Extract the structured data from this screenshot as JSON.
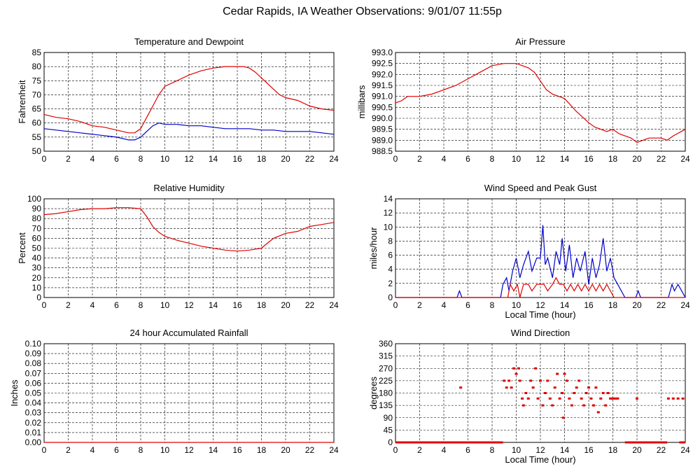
{
  "page_title": "Cedar Rapids, IA Weather Observations: 9/01/07 11:55p",
  "colors": {
    "red": "#e00000",
    "blue": "#0000cc",
    "grid": "#000000"
  },
  "chart_data": [
    {
      "id": "temp",
      "type": "line",
      "title": "Temperature and Dewpoint",
      "xlabel": "",
      "ylabel": "Fahrenheit",
      "xlim": [
        0,
        24
      ],
      "ylim": [
        50,
        85
      ],
      "xticks": [
        "0",
        "2",
        "4",
        "6",
        "8",
        "10",
        "12",
        "14",
        "16",
        "18",
        "20",
        "22",
        "24"
      ],
      "yticks": [
        "50",
        "55",
        "60",
        "65",
        "70",
        "75",
        "80",
        "85"
      ],
      "series": [
        {
          "color": "#e00000",
          "x": [
            0,
            1,
            2,
            3,
            4,
            5,
            6,
            7,
            7.5,
            8,
            8.5,
            9,
            9.5,
            10,
            11,
            12,
            13,
            14,
            15,
            16,
            16.5,
            17,
            17.5,
            18,
            18.5,
            19,
            19.5,
            20,
            21,
            22,
            23,
            24
          ],
          "y": [
            63,
            62,
            61.5,
            60.5,
            59,
            58.5,
            57.5,
            56.5,
            56.5,
            58,
            62,
            66,
            70,
            73,
            75,
            77,
            78.5,
            79.5,
            80,
            80,
            80,
            79.5,
            78,
            76,
            74,
            72,
            70,
            69,
            68,
            66,
            65,
            64.5
          ]
        },
        {
          "color": "#0000cc",
          "x": [
            0,
            1,
            2,
            3,
            4,
            5,
            6,
            7,
            7.5,
            8,
            8.5,
            9,
            9.5,
            10,
            11,
            12,
            13,
            14,
            15,
            16,
            17,
            18,
            19,
            20,
            21,
            22,
            23,
            24
          ],
          "y": [
            58,
            57.5,
            57,
            56.5,
            56,
            55.5,
            55,
            54,
            54,
            55,
            57,
            59,
            60,
            59.5,
            59.5,
            59,
            59,
            58.5,
            58,
            58,
            58,
            57.5,
            57.5,
            57,
            57,
            57,
            56.5,
            56
          ]
        }
      ]
    },
    {
      "id": "pressure",
      "type": "line",
      "title": "Air Pressure",
      "xlabel": "",
      "ylabel": "millibars",
      "xlim": [
        0,
        24
      ],
      "ylim": [
        988.5,
        993.0
      ],
      "xticks": [
        "0",
        "2",
        "4",
        "6",
        "8",
        "10",
        "12",
        "14",
        "16",
        "18",
        "20",
        "22",
        "24"
      ],
      "yticks": [
        "988.5",
        "989.0",
        "989.5",
        "990.0",
        "990.5",
        "991.0",
        "991.5",
        "992.0",
        "992.5",
        "993.0"
      ],
      "series": [
        {
          "color": "#e00000",
          "x": [
            0,
            0.5,
            1,
            2,
            3,
            4,
            5,
            6,
            7,
            8,
            9,
            10,
            11,
            11.5,
            12,
            12.5,
            13,
            14,
            15,
            16,
            16.5,
            17,
            17.5,
            18,
            18.5,
            19,
            19.5,
            20,
            21,
            22,
            22.5,
            23,
            24
          ],
          "y": [
            990.7,
            990.8,
            991.0,
            991.0,
            991.1,
            991.3,
            991.5,
            991.8,
            992.1,
            992.4,
            992.5,
            992.5,
            992.3,
            992.1,
            991.7,
            991.3,
            991.1,
            990.9,
            990.3,
            989.8,
            989.6,
            989.5,
            989.4,
            989.5,
            989.3,
            989.2,
            989.1,
            988.9,
            989.1,
            989.1,
            989.0,
            989.2,
            989.5
          ]
        }
      ]
    },
    {
      "id": "humidity",
      "type": "line",
      "title": "Relative Humidity",
      "xlabel": "",
      "ylabel": "Percent",
      "xlim": [
        0,
        24
      ],
      "ylim": [
        0,
        100
      ],
      "xticks": [
        "0",
        "2",
        "4",
        "6",
        "8",
        "10",
        "12",
        "14",
        "16",
        "18",
        "20",
        "22",
        "24"
      ],
      "yticks": [
        "0",
        "10",
        "20",
        "30",
        "40",
        "50",
        "60",
        "70",
        "80",
        "90",
        "100"
      ],
      "series": [
        {
          "color": "#e00000",
          "x": [
            0,
            1,
            2,
            3,
            4,
            5,
            6,
            7,
            8,
            8.5,
            9,
            9.5,
            10,
            11,
            12,
            13,
            14,
            15,
            16,
            17,
            18,
            18.5,
            19,
            20,
            21,
            22,
            23,
            24
          ],
          "y": [
            84,
            85,
            87,
            89,
            90,
            90,
            91,
            91,
            90,
            82,
            72,
            66,
            62,
            58,
            55,
            52,
            50,
            48,
            47,
            48,
            50,
            55,
            60,
            65,
            67,
            72,
            74,
            76
          ]
        }
      ]
    },
    {
      "id": "wind",
      "type": "line",
      "title": "Wind Speed and Peak Gust",
      "xlabel": "Local Time (hour)",
      "ylabel": "miles/hour",
      "xlim": [
        0,
        24
      ],
      "ylim": [
        0,
        15
      ],
      "xticks": [
        "0",
        "2",
        "4",
        "6",
        "8",
        "10",
        "12",
        "14",
        "16",
        "18",
        "20",
        "22",
        "24"
      ],
      "yticks": [
        "0",
        "2",
        "4",
        "6",
        "8",
        "10",
        "12",
        "14"
      ],
      "series": [
        {
          "color": "#0000cc",
          "x": [
            0,
            5.1,
            5.3,
            5.5,
            8.7,
            8.9,
            9.2,
            9.4,
            9.7,
            10.0,
            10.3,
            10.6,
            11.0,
            11.3,
            11.7,
            12.0,
            12.2,
            12.4,
            12.6,
            13.0,
            13.3,
            13.6,
            13.8,
            14.1,
            14.4,
            14.7,
            15.0,
            15.3,
            15.7,
            16.0,
            16.3,
            16.6,
            16.9,
            17.2,
            17.5,
            17.8,
            18.1,
            18.4,
            18.7,
            19.0,
            19.9,
            20.1,
            20.3,
            22.6,
            22.9,
            23.1,
            23.4,
            23.7,
            24
          ],
          "y": [
            0,
            0,
            1,
            0,
            0,
            2,
            3,
            1,
            4,
            6,
            3,
            5,
            7,
            4,
            6,
            6,
            11,
            5,
            6,
            3,
            7,
            5,
            9,
            4,
            8,
            3,
            6,
            4,
            7,
            2,
            6,
            3,
            5,
            9,
            4,
            6,
            3,
            2,
            1,
            0,
            0,
            1,
            0,
            0,
            2,
            1,
            2,
            1,
            0
          ]
        },
        {
          "color": "#e00000",
          "x": [
            0,
            9.3,
            9.5,
            9.8,
            10.1,
            10.3,
            10.6,
            11.0,
            11.3,
            11.7,
            12.0,
            12.3,
            12.6,
            13.0,
            13.3,
            13.6,
            13.9,
            14.2,
            14.5,
            14.8,
            15.1,
            15.4,
            15.7,
            16.0,
            16.3,
            16.6,
            16.9,
            17.2,
            17.5,
            17.8,
            18.1,
            24
          ],
          "y": [
            0,
            0,
            2,
            1,
            2,
            0,
            2,
            2,
            1,
            2,
            2,
            2,
            1,
            2,
            3,
            2,
            2,
            1,
            2,
            1,
            2,
            1,
            2,
            1,
            2,
            1,
            2,
            1,
            2,
            1,
            0,
            0
          ]
        }
      ]
    },
    {
      "id": "rain",
      "type": "line",
      "title": "24 hour Accumulated Rainfall",
      "xlabel": "",
      "ylabel": "Inches",
      "xlim": [
        0,
        24
      ],
      "ylim": [
        0,
        0.1
      ],
      "xticks": [
        "0",
        "2",
        "4",
        "6",
        "8",
        "10",
        "12",
        "14",
        "16",
        "18",
        "20",
        "22",
        "24"
      ],
      "yticks": [
        "0.00",
        "0.01",
        "0.02",
        "0.03",
        "0.04",
        "0.05",
        "0.06",
        "0.07",
        "0.08",
        "0.09",
        "0.10"
      ],
      "series": [
        {
          "color": "#e00000",
          "x": [
            0,
            24
          ],
          "y": [
            0,
            0
          ]
        }
      ]
    },
    {
      "id": "direction",
      "type": "scatter",
      "title": "Wind Direction",
      "xlabel": "Local Time (hour)",
      "ylabel": "degrees",
      "xlim": [
        0,
        24
      ],
      "ylim": [
        0,
        360
      ],
      "xticks": [
        "0",
        "2",
        "4",
        "6",
        "8",
        "10",
        "12",
        "14",
        "16",
        "18",
        "20",
        "22",
        "24"
      ],
      "yticks": [
        "0",
        "45",
        "90",
        "135",
        "180",
        "225",
        "270",
        "315",
        "360"
      ],
      "calm_ranges": [
        [
          0,
          8.9
        ],
        [
          19.0,
          22.5
        ],
        [
          23.5,
          24
        ]
      ],
      "series": [
        {
          "color": "#e00000",
          "points": [
            [
              5.4,
              200
            ],
            [
              9.0,
              225
            ],
            [
              9.2,
              200
            ],
            [
              9.4,
              225
            ],
            [
              9.6,
              200
            ],
            [
              9.8,
              270
            ],
            [
              10.0,
              250
            ],
            [
              10.2,
              270
            ],
            [
              10.3,
              225
            ],
            [
              10.5,
              160
            ],
            [
              10.6,
              135
            ],
            [
              10.8,
              180
            ],
            [
              11.0,
              160
            ],
            [
              11.2,
              225
            ],
            [
              11.4,
              200
            ],
            [
              11.6,
              270
            ],
            [
              11.8,
              160
            ],
            [
              12.0,
              225
            ],
            [
              12.2,
              135
            ],
            [
              12.4,
              180
            ],
            [
              12.6,
              225
            ],
            [
              12.8,
              160
            ],
            [
              13.0,
              135
            ],
            [
              13.2,
              200
            ],
            [
              13.4,
              250
            ],
            [
              13.6,
              160
            ],
            [
              13.8,
              180
            ],
            [
              13.9,
              90
            ],
            [
              14.0,
              250
            ],
            [
              14.2,
              225
            ],
            [
              14.4,
              160
            ],
            [
              14.6,
              135
            ],
            [
              14.8,
              180
            ],
            [
              15.0,
              200
            ],
            [
              15.2,
              225
            ],
            [
              15.4,
              160
            ],
            [
              15.6,
              135
            ],
            [
              15.8,
              180
            ],
            [
              16.0,
              200
            ],
            [
              16.2,
              160
            ],
            [
              16.4,
              135
            ],
            [
              16.6,
              200
            ],
            [
              16.8,
              110
            ],
            [
              17.0,
              160
            ],
            [
              17.2,
              180
            ],
            [
              17.4,
              135
            ],
            [
              17.6,
              180
            ],
            [
              17.8,
              160
            ],
            [
              18.0,
              160
            ],
            [
              18.2,
              160
            ],
            [
              18.4,
              160
            ],
            [
              20.0,
              160
            ],
            [
              22.6,
              160
            ],
            [
              23.0,
              160
            ],
            [
              23.4,
              160
            ],
            [
              23.8,
              160
            ]
          ]
        }
      ]
    }
  ]
}
